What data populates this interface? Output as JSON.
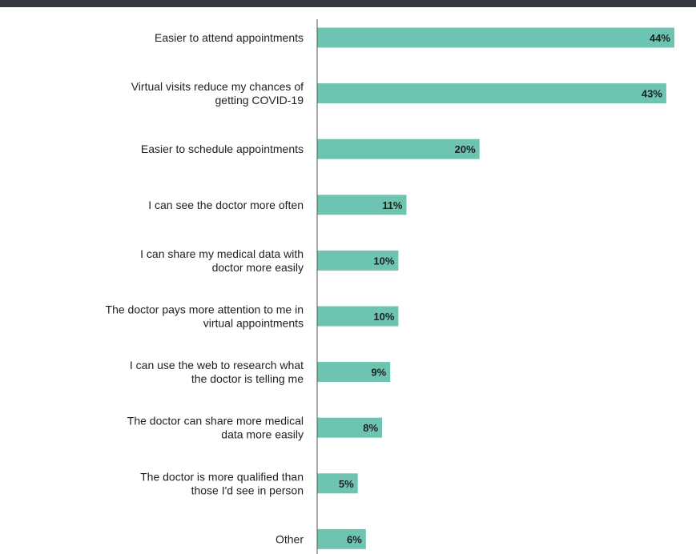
{
  "chart_data": {
    "type": "bar",
    "orientation": "horizontal",
    "categories": [
      [
        "Easier to attend appointments"
      ],
      [
        "Virtual visits reduce my chances of",
        "getting COVID-19"
      ],
      [
        "Easier to schedule appointments"
      ],
      [
        "I can see the doctor more often"
      ],
      [
        "I can share my medical data with",
        "doctor more easily"
      ],
      [
        "The doctor pays more attention to me in",
        "virtual appointments"
      ],
      [
        "I can use the web to research what",
        "the doctor is telling me"
      ],
      [
        "The doctor can share more medical",
        "data more easily"
      ],
      [
        "The doctor is more qualified than",
        "those I'd see in person"
      ],
      [
        "Other"
      ]
    ],
    "values": [
      44,
      43,
      20,
      11,
      10,
      10,
      9,
      8,
      5,
      6
    ],
    "value_labels": [
      "44%",
      "43%",
      "20%",
      "11%",
      "10%",
      "10%",
      "9%",
      "8%",
      "5%",
      "6%"
    ],
    "title": "",
    "xlabel": "",
    "ylabel": "",
    "xlim": [
      0,
      44
    ],
    "grid": false,
    "legend": "none",
    "bar_color": "#6cc4b1",
    "axis_color": "#555555",
    "header_bar_color": "#34383d"
  }
}
